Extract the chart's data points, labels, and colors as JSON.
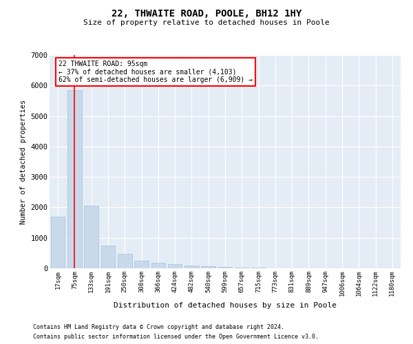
{
  "title": "22, THWAITE ROAD, POOLE, BH12 1HY",
  "subtitle": "Size of property relative to detached houses in Poole",
  "xlabel": "Distribution of detached houses by size in Poole",
  "ylabel": "Number of detached properties",
  "bar_color": "#c8d9ec",
  "bar_edgecolor": "#a8bfd8",
  "background_color": "#e4edf5",
  "grid_color": "#ffffff",
  "categories": [
    "17sqm",
    "75sqm",
    "133sqm",
    "191sqm",
    "250sqm",
    "308sqm",
    "366sqm",
    "424sqm",
    "482sqm",
    "540sqm",
    "599sqm",
    "657sqm",
    "715sqm",
    "773sqm",
    "831sqm",
    "889sqm",
    "947sqm",
    "1006sqm",
    "1064sqm",
    "1122sqm",
    "1180sqm"
  ],
  "values": [
    1700,
    5850,
    2050,
    750,
    480,
    250,
    175,
    130,
    100,
    75,
    50,
    30,
    18,
    10,
    6,
    4,
    3,
    3,
    2,
    2,
    2
  ],
  "ylim": [
    0,
    7000
  ],
  "yticks": [
    0,
    1000,
    2000,
    3000,
    4000,
    5000,
    6000,
    7000
  ],
  "property_label": "22 THWAITE ROAD: 95sqm",
  "pct_smaller": 37,
  "count_smaller": 4103,
  "pct_larger_semi": 62,
  "count_larger_semi": 6909,
  "footnote1": "Contains HM Land Registry data © Crown copyright and database right 2024.",
  "footnote2": "Contains public sector information licensed under the Open Government Licence v3.0."
}
